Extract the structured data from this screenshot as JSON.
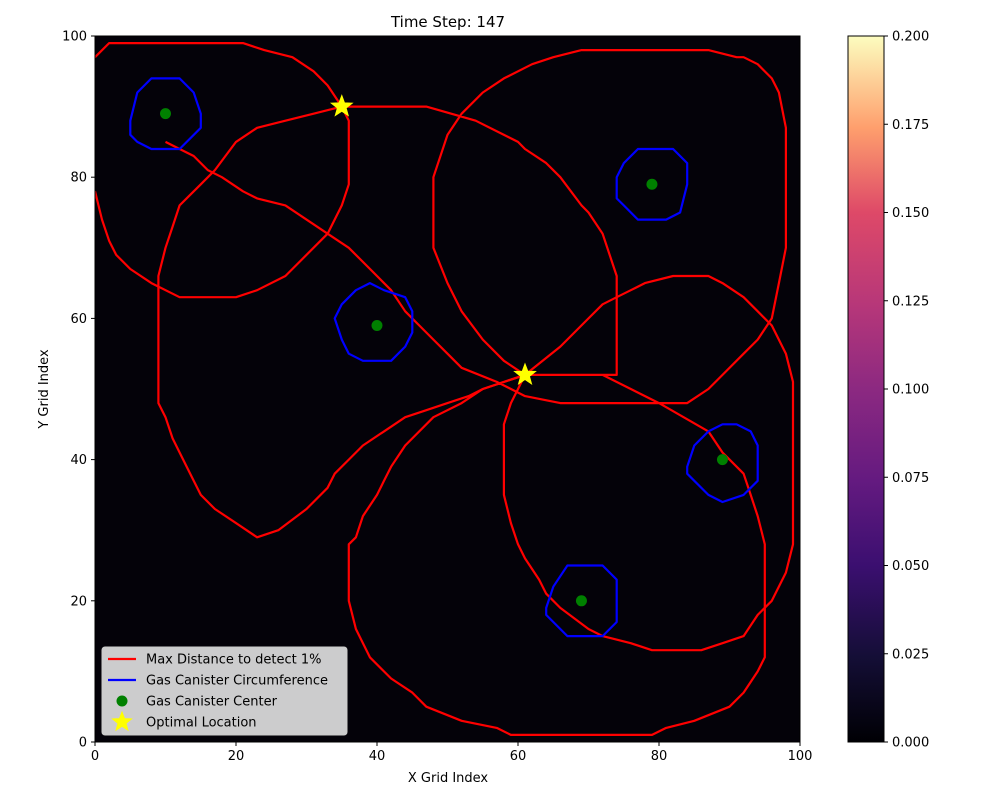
{
  "chart_data": {
    "type": "heatmap",
    "title": "Time Step: 147",
    "xlabel": "X Grid Index",
    "ylabel": "Y Grid Index",
    "xlim": [
      0,
      100
    ],
    "ylim": [
      0,
      100
    ],
    "xticks": [
      0,
      20,
      40,
      60,
      80,
      100
    ],
    "yticks": [
      0,
      20,
      40,
      60,
      80,
      100
    ],
    "grid": false,
    "background_value": 0.0,
    "colorbar": {
      "colormap": "magma",
      "range": [
        0.0,
        0.2
      ],
      "ticks": [
        "0.000",
        "0.025",
        "0.050",
        "0.075",
        "0.100",
        "0.125",
        "0.150",
        "0.175",
        "0.200"
      ]
    },
    "colors": {
      "detection": "#ff0000",
      "circumference": "#0000ff",
      "center": "#008000",
      "optimal": "#ffff00"
    },
    "legend": {
      "placement": "lower-left",
      "entries": [
        {
          "label": "Max Distance to detect 1%",
          "kind": "line",
          "color": "#ff0000"
        },
        {
          "label": "Gas Canister Circumference",
          "kind": "line",
          "color": "#0000ff"
        },
        {
          "label": "Gas Canister Center",
          "kind": "dot",
          "color": "#008000"
        },
        {
          "label": "Optimal Location",
          "kind": "star",
          "color": "#ffff00"
        }
      ]
    },
    "canisters": [
      {
        "center": [
          10,
          89
        ],
        "circumference": [
          [
            5,
            88
          ],
          [
            6,
            92
          ],
          [
            8,
            94
          ],
          [
            12,
            94
          ],
          [
            14,
            92
          ],
          [
            15,
            89
          ],
          [
            15,
            87
          ],
          [
            12,
            84
          ],
          [
            8,
            84
          ],
          [
            6,
            85
          ],
          [
            5,
            86
          ]
        ]
      },
      {
        "center": [
          79,
          79
        ],
        "circumference": [
          [
            74,
            80
          ],
          [
            75,
            82
          ],
          [
            77,
            84
          ],
          [
            82,
            84
          ],
          [
            84,
            82
          ],
          [
            84,
            79
          ],
          [
            83,
            75
          ],
          [
            81,
            74
          ],
          [
            77,
            74
          ],
          [
            75,
            76
          ],
          [
            74,
            77
          ]
        ]
      },
      {
        "center": [
          40,
          59
        ],
        "circumference": [
          [
            34,
            60
          ],
          [
            35,
            62
          ],
          [
            37,
            64
          ],
          [
            39,
            65
          ],
          [
            41,
            64
          ],
          [
            44,
            63
          ],
          [
            45,
            61
          ],
          [
            45,
            58
          ],
          [
            44,
            56
          ],
          [
            42,
            54
          ],
          [
            38,
            54
          ],
          [
            36,
            55
          ],
          [
            35,
            57
          ]
        ]
      },
      {
        "center": [
          89,
          40
        ],
        "circumference": [
          [
            84,
            39
          ],
          [
            85,
            42
          ],
          [
            87,
            44
          ],
          [
            89,
            45
          ],
          [
            91,
            45
          ],
          [
            93,
            44
          ],
          [
            94,
            42
          ],
          [
            94,
            37
          ],
          [
            92,
            35
          ],
          [
            89,
            34
          ],
          [
            87,
            35
          ],
          [
            85,
            37
          ],
          [
            84,
            38
          ]
        ]
      },
      {
        "center": [
          69,
          20
        ],
        "circumference": [
          [
            64,
            19
          ],
          [
            65,
            22
          ],
          [
            67,
            25
          ],
          [
            72,
            25
          ],
          [
            74,
            23
          ],
          [
            74,
            17
          ],
          [
            72,
            15
          ],
          [
            67,
            15
          ],
          [
            65,
            17
          ],
          [
            64,
            18
          ]
        ]
      }
    ],
    "detection_boundaries": [
      [
        [
          0,
          97
        ],
        [
          2,
          99
        ],
        [
          21,
          99
        ],
        [
          24,
          98
        ],
        [
          28,
          97
        ],
        [
          31,
          95
        ],
        [
          33,
          93
        ],
        [
          35,
          90
        ],
        [
          36,
          88
        ],
        [
          36,
          79
        ],
        [
          35,
          76
        ],
        [
          33,
          72
        ],
        [
          27,
          66
        ],
        [
          23,
          64
        ],
        [
          20,
          63
        ],
        [
          12,
          63
        ],
        [
          8,
          65
        ],
        [
          5,
          67
        ],
        [
          3,
          69
        ],
        [
          2,
          71
        ],
        [
          1,
          74
        ],
        [
          0,
          78
        ]
      ],
      [
        [
          35,
          90
        ],
        [
          47,
          90
        ],
        [
          54,
          88
        ],
        [
          60,
          85
        ],
        [
          61,
          84
        ],
        [
          64,
          82
        ],
        [
          66,
          80
        ],
        [
          69,
          76
        ],
        [
          70,
          75
        ],
        [
          72,
          72
        ],
        [
          74,
          66
        ],
        [
          74,
          52
        ],
        [
          61,
          52
        ],
        [
          55,
          50
        ],
        [
          52,
          48
        ],
        [
          48,
          46
        ],
        [
          45,
          43
        ],
        [
          44,
          42
        ],
        [
          42,
          39
        ],
        [
          41,
          37
        ],
        [
          40,
          35
        ],
        [
          38,
          32
        ],
        [
          37,
          29
        ],
        [
          36,
          28
        ],
        [
          36,
          20
        ],
        [
          37,
          16
        ],
        [
          39,
          12
        ],
        [
          42,
          9
        ],
        [
          45,
          7
        ],
        [
          47,
          5
        ],
        [
          52,
          3
        ],
        [
          57,
          2
        ],
        [
          59,
          1
        ],
        [
          79,
          1
        ],
        [
          81,
          2
        ],
        [
          85,
          3
        ],
        [
          90,
          5
        ],
        [
          92,
          7
        ],
        [
          94,
          10
        ],
        [
          95,
          12
        ],
        [
          95,
          28
        ],
        [
          94,
          32
        ],
        [
          93,
          35
        ],
        [
          92,
          38
        ],
        [
          89,
          41
        ],
        [
          87,
          44
        ],
        [
          80,
          48
        ],
        [
          76,
          50
        ],
        [
          72,
          52
        ],
        [
          61,
          52
        ],
        [
          58,
          54
        ],
        [
          55,
          57
        ],
        [
          52,
          61
        ],
        [
          50,
          65
        ],
        [
          48,
          70
        ],
        [
          48,
          80
        ],
        [
          50,
          86
        ],
        [
          52,
          89
        ],
        [
          55,
          92
        ],
        [
          58,
          94
        ],
        [
          62,
          96
        ],
        [
          65,
          97
        ],
        [
          69,
          98
        ],
        [
          87,
          98
        ],
        [
          91,
          97
        ],
        [
          92,
          97
        ],
        [
          94,
          96
        ],
        [
          96,
          94
        ],
        [
          97,
          92
        ],
        [
          98,
          87
        ],
        [
          98,
          70
        ],
        [
          97,
          65
        ],
        [
          96,
          60
        ],
        [
          94,
          57
        ],
        [
          92,
          55
        ],
        [
          89,
          52
        ],
        [
          87,
          50
        ],
        [
          84,
          48
        ],
        [
          66,
          48
        ],
        [
          61,
          49
        ],
        [
          57,
          51
        ],
        [
          52,
          53
        ],
        [
          50,
          55
        ],
        [
          48,
          57
        ],
        [
          46,
          59
        ],
        [
          44,
          61
        ],
        [
          42,
          64
        ],
        [
          40,
          66
        ],
        [
          38,
          68
        ],
        [
          36,
          70
        ],
        [
          33,
          72
        ],
        [
          30,
          74
        ],
        [
          27,
          76
        ],
        [
          23,
          77
        ],
        [
          21,
          78
        ],
        [
          18,
          80
        ],
        [
          16,
          81
        ],
        [
          14,
          83
        ],
        [
          12,
          84
        ],
        [
          10,
          85
        ]
      ],
      [
        [
          61,
          52
        ],
        [
          66,
          56
        ],
        [
          68,
          58
        ],
        [
          70,
          60
        ],
        [
          72,
          62
        ],
        [
          74,
          63
        ],
        [
          76,
          64
        ],
        [
          78,
          65
        ],
        [
          82,
          66
        ],
        [
          87,
          66
        ],
        [
          89,
          65
        ],
        [
          92,
          63
        ],
        [
          94,
          61
        ],
        [
          96,
          59
        ],
        [
          98,
          55
        ],
        [
          99,
          51
        ],
        [
          99,
          28
        ],
        [
          98,
          24
        ],
        [
          96,
          20
        ],
        [
          94,
          18
        ],
        [
          92,
          15
        ],
        [
          89,
          14
        ],
        [
          86,
          13
        ],
        [
          79,
          13
        ],
        [
          76,
          14
        ],
        [
          72,
          15
        ],
        [
          70,
          16
        ],
        [
          66,
          19
        ],
        [
          64,
          21
        ],
        [
          63,
          23
        ],
        [
          61,
          26
        ],
        [
          60,
          28
        ],
        [
          59,
          31
        ],
        [
          58,
          35
        ],
        [
          58,
          45
        ],
        [
          59,
          48
        ],
        [
          60,
          50
        ],
        [
          61,
          52
        ]
      ],
      [
        [
          61,
          52
        ],
        [
          58,
          51
        ],
        [
          55,
          50
        ],
        [
          53,
          49
        ],
        [
          50,
          48
        ],
        [
          47,
          47
        ],
        [
          44,
          46
        ],
        [
          41,
          44
        ],
        [
          38,
          42
        ],
        [
          36,
          40
        ],
        [
          34,
          38
        ],
        [
          33,
          36
        ],
        [
          30,
          33
        ],
        [
          26,
          30
        ],
        [
          23,
          29
        ],
        [
          20,
          31
        ],
        [
          17,
          33
        ],
        [
          15,
          35
        ],
        [
          14,
          37
        ],
        [
          13,
          39
        ],
        [
          12,
          41
        ],
        [
          11,
          43
        ],
        [
          10,
          46
        ],
        [
          9,
          48
        ],
        [
          9,
          66
        ],
        [
          10,
          70
        ],
        [
          11,
          73
        ],
        [
          12,
          76
        ],
        [
          15,
          79
        ],
        [
          17,
          81
        ],
        [
          20,
          85
        ],
        [
          23,
          87
        ],
        [
          27,
          88
        ],
        [
          31,
          89
        ],
        [
          35,
          90
        ]
      ]
    ],
    "optimal_locations": [
      [
        35,
        90
      ],
      [
        61,
        52
      ]
    ]
  }
}
